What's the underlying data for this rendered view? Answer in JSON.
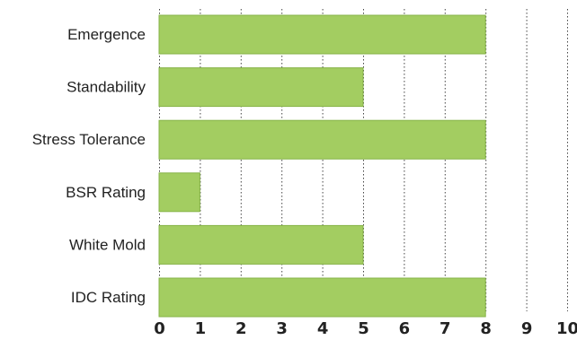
{
  "chart_data": {
    "type": "bar",
    "orientation": "horizontal",
    "categories": [
      "Emergence",
      "Standability",
      "Stress Tolerance",
      "BSR Rating",
      "White Mold",
      "IDC Rating"
    ],
    "values": [
      8,
      5,
      8,
      1,
      5,
      8
    ],
    "xlim": [
      0,
      10
    ],
    "x_ticks": [
      "0",
      "1",
      "2",
      "3",
      "4",
      "5",
      "6",
      "7",
      "8",
      "9",
      "10"
    ],
    "grid": "vertical dotted",
    "title": "",
    "xlabel": "",
    "ylabel": "",
    "bar_color": "#a3cd61"
  }
}
